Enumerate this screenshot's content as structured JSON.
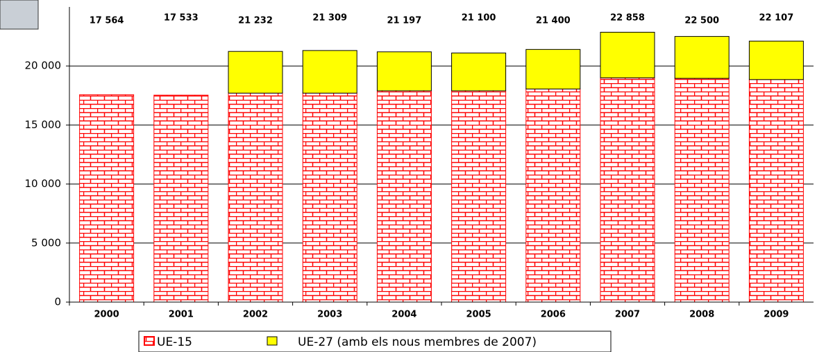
{
  "chart_data": {
    "type": "stacked_bar",
    "categories": [
      "2000",
      "2001",
      "2002",
      "2003",
      "2004",
      "2005",
      "2006",
      "2007",
      "2008",
      "2009"
    ],
    "series": [
      {
        "name": "UE-15",
        "color": "#ff0000",
        "values": [
          17564,
          17533,
          17700,
          17700,
          17900,
          17900,
          18050,
          19000,
          18950,
          18850
        ]
      },
      {
        "name": "UE-27 (amb els nous membres de 2007)",
        "color": "#ffff00",
        "values": [
          null,
          null,
          3532,
          3609,
          3297,
          3200,
          3350,
          3858,
          3550,
          3257
        ]
      }
    ],
    "totals": [
      17564,
      17533,
      21232,
      21309,
      21197,
      21100,
      21400,
      22858,
      22500,
      22107
    ],
    "total_labels": [
      "17 564",
      "17 533",
      "21 232",
      "21 309",
      "21 197",
      "21 100",
      "21 400",
      "22 858",
      "22 500",
      "22 107"
    ],
    "ylim": [
      0,
      25000
    ],
    "yticks": [
      0,
      {
        "value": 5000,
        "label": "5 000"
      },
      {
        "value": 10000,
        "label": "10 000"
      },
      {
        "value": 15000,
        "label": "15 000"
      },
      {
        "value": 20000,
        "label": "20 000"
      }
    ],
    "grid": true
  }
}
